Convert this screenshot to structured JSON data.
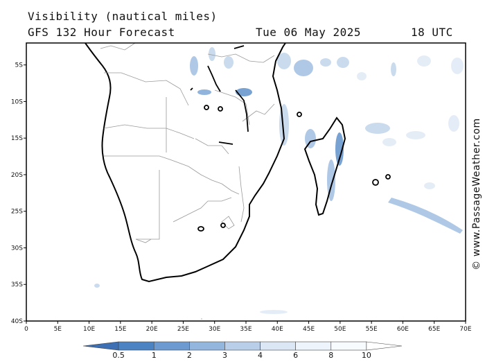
{
  "title_line1": "Visibility (nautical miles)",
  "title_line2": "GFS 132 Hour Forecast",
  "valid_date": "Tue 06 May 2025",
  "valid_time": "18 UTC",
  "watermark": "© www.PassageWeather.com",
  "map": {
    "lon_range": [
      0,
      70
    ],
    "lat_range": [
      -2,
      -40
    ],
    "lon_ticks": [
      "0",
      "5E",
      "10E",
      "15E",
      "20E",
      "25E",
      "30E",
      "35E",
      "40E",
      "45E",
      "50E",
      "55E",
      "60E",
      "65E",
      "70E"
    ],
    "lat_ticks": [
      "5S",
      "10S",
      "15S",
      "20S",
      "25S",
      "30S",
      "35S",
      "40S"
    ]
  },
  "legend": {
    "labels": [
      "0.5",
      "1",
      "2",
      "3",
      "4",
      "6",
      "8",
      "10"
    ],
    "colors": [
      "#3c6fb3",
      "#4c83c2",
      "#6d9bd1",
      "#93b6de",
      "#b9cfe9",
      "#dbe7f4",
      "#eef4fb",
      "#f8fbfe",
      "#ffffff"
    ]
  }
}
